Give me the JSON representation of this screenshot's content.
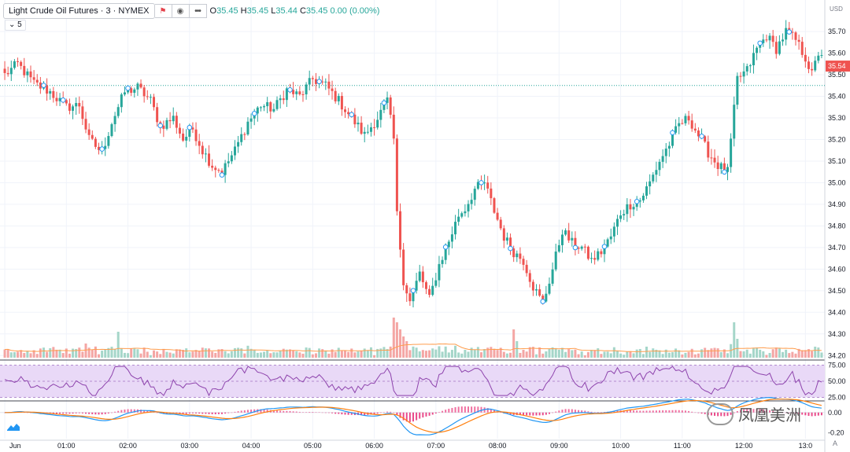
{
  "legend": {
    "symbol": "Light Crude Oil Futures · 3 · NYMEX",
    "o": "O",
    "o_val": "35.45",
    "h": "H",
    "h_val": "35.45",
    "l": "L",
    "l_val": "35.44",
    "c": "C",
    "c_val": "35.45",
    "change": "0.00 (0.00%)",
    "interval_chip": "5",
    "icons": [
      "flag-icon",
      "eye-icon",
      "more-icon"
    ]
  },
  "price_axis": {
    "currency": "USD",
    "ticks": [
      "35.70",
      "35.60",
      "35.50",
      "35.40",
      "35.30",
      "35.20",
      "35.10",
      "35.00",
      "34.90",
      "34.80",
      "34.70",
      "34.60",
      "34.50",
      "34.40",
      "34.30",
      "34.20"
    ],
    "current_price": "35.54",
    "current_price_value": 35.54,
    "ref_line_value": 35.45,
    "range": [
      34.19,
      35.755
    ]
  },
  "rsi_axis": {
    "ticks": [
      "75.00",
      "50.00",
      "25.00"
    ],
    "range": [
      22,
      78
    ]
  },
  "macd_axis": {
    "ticks": [
      "0.00",
      "-0.20"
    ],
    "range": [
      -0.26,
      0.1
    ]
  },
  "time_axis": {
    "labels": [
      "Jun",
      "01:00",
      "02:00",
      "03:00",
      "04:00",
      "05:00",
      "06:00",
      "07:00",
      "08:00",
      "09:00",
      "10:00",
      "11:00",
      "12:00",
      "13:0"
    ]
  },
  "watermark": "凤凰美洲",
  "scale_mode": "A",
  "colors": {
    "up": "#26a69a",
    "down": "#ef5350",
    "up_vol": "#a5d6c9",
    "down_vol": "#f4a6a4",
    "ref_line": "#26a69a",
    "rsi": "#8e44ad",
    "rsi_band": "#e9d9f7",
    "macd": "#2196f3",
    "signal": "#ff7f0e",
    "vol_ma": "#ff9d4d",
    "price_label": "#ef5350"
  },
  "chart_data": {
    "type": "candlestick",
    "interval_minutes": 3,
    "anchors": [
      [
        0,
        35.5
      ],
      [
        4,
        35.55
      ],
      [
        9,
        35.46
      ],
      [
        14,
        35.42
      ],
      [
        19,
        35.35
      ],
      [
        23,
        35.36
      ],
      [
        26,
        35.2
      ],
      [
        30,
        35.14
      ],
      [
        33,
        35.28
      ],
      [
        37,
        35.42
      ],
      [
        41,
        35.44
      ],
      [
        45,
        35.38
      ],
      [
        48,
        35.26
      ],
      [
        52,
        35.3
      ],
      [
        55,
        35.2
      ],
      [
        58,
        35.25
      ],
      [
        61,
        35.15
      ],
      [
        64,
        35.08
      ],
      [
        67,
        35.05
      ],
      [
        71,
        35.15
      ],
      [
        75,
        35.28
      ],
      [
        79,
        35.36
      ],
      [
        83,
        35.34
      ],
      [
        87,
        35.43
      ],
      [
        91,
        35.4
      ],
      [
        95,
        35.48
      ],
      [
        99,
        35.45
      ],
      [
        103,
        35.38
      ],
      [
        107,
        35.3
      ],
      [
        111,
        35.22
      ],
      [
        115,
        35.3
      ],
      [
        118,
        35.38
      ],
      [
        120,
        35.2
      ],
      [
        121,
        34.85
      ],
      [
        123,
        34.55
      ],
      [
        125,
        34.45
      ],
      [
        128,
        34.58
      ],
      [
        131,
        34.46
      ],
      [
        134,
        34.62
      ],
      [
        137,
        34.73
      ],
      [
        140,
        34.85
      ],
      [
        142,
        34.88
      ],
      [
        145,
        34.97
      ],
      [
        148,
        35.0
      ],
      [
        151,
        34.87
      ],
      [
        154,
        34.75
      ],
      [
        157,
        34.68
      ],
      [
        160,
        34.64
      ],
      [
        163,
        34.52
      ],
      [
        166,
        34.44
      ],
      [
        169,
        34.6
      ],
      [
        172,
        34.78
      ],
      [
        175,
        34.72
      ],
      [
        178,
        34.7
      ],
      [
        181,
        34.64
      ],
      [
        184,
        34.68
      ],
      [
        187,
        34.75
      ],
      [
        190,
        34.86
      ],
      [
        193,
        34.9
      ],
      [
        196,
        34.92
      ],
      [
        199,
        35.0
      ],
      [
        202,
        35.1
      ],
      [
        205,
        35.18
      ],
      [
        208,
        35.27
      ],
      [
        211,
        35.3
      ],
      [
        214,
        35.22
      ],
      [
        217,
        35.14
      ],
      [
        220,
        35.08
      ],
      [
        223,
        35.05
      ],
      [
        226,
        35.48
      ],
      [
        229,
        35.52
      ],
      [
        232,
        35.62
      ],
      [
        235,
        35.68
      ],
      [
        238,
        35.62
      ],
      [
        241,
        35.7
      ],
      [
        244,
        35.66
      ],
      [
        247,
        35.58
      ],
      [
        249,
        35.5
      ],
      [
        251,
        35.6
      ]
    ],
    "volume_spikes": [
      [
        25,
        0.3
      ],
      [
        35,
        0.55
      ],
      [
        120,
        0.85
      ],
      [
        121,
        0.75
      ],
      [
        122,
        0.6
      ],
      [
        123,
        0.45
      ],
      [
        124,
        0.35
      ],
      [
        157,
        0.6
      ],
      [
        158,
        0.35
      ],
      [
        225,
        0.75
      ],
      [
        226,
        0.4
      ]
    ],
    "time_ticks": [
      0,
      19,
      38,
      57,
      76,
      95,
      114,
      133,
      152,
      171,
      190,
      209,
      228,
      247
    ]
  }
}
